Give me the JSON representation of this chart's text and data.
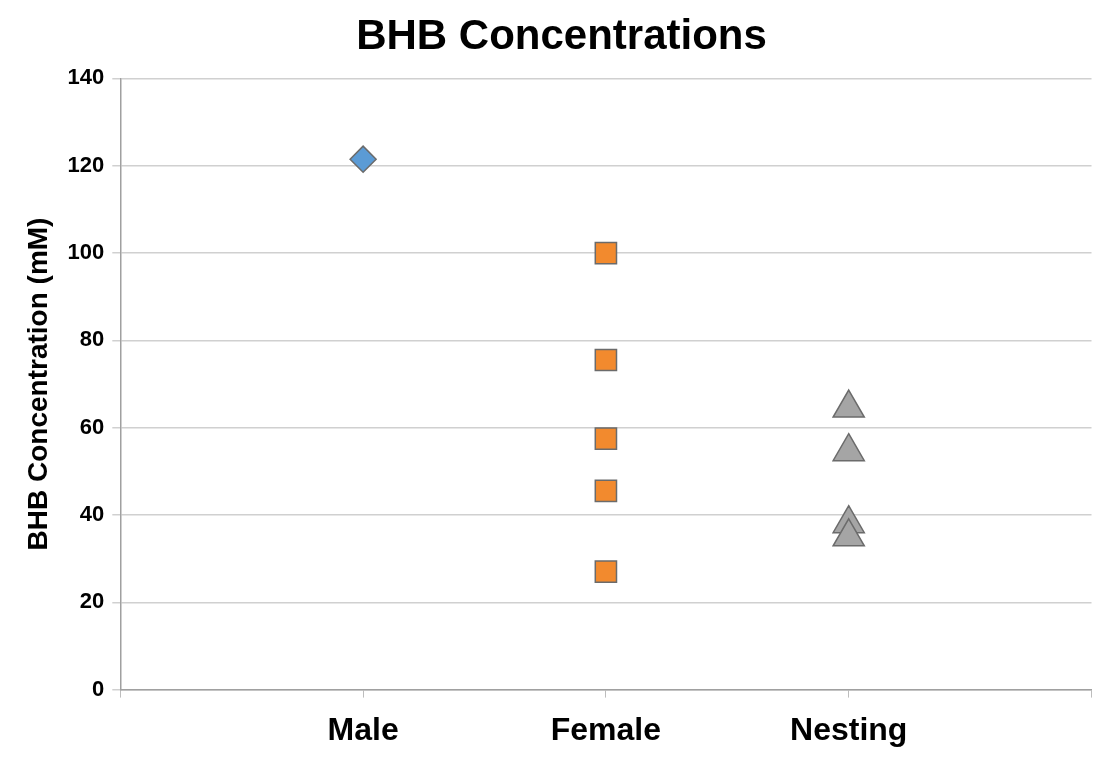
{
  "chart_data": {
    "type": "scatter",
    "title": "BHB Concentrations",
    "ylabel": "BHB Concentration (mM)",
    "categories": [
      "Male",
      "Female",
      "Nesting"
    ],
    "ylim": [
      0,
      140
    ],
    "yticks": [
      0,
      20,
      40,
      60,
      80,
      100,
      120,
      140
    ],
    "grid": "y",
    "legend": false,
    "series": [
      {
        "color": "#5b9bd5",
        "marker": "diamond",
        "x": [
          "Male"
        ],
        "values": [
          121.5
        ]
      },
      {
        "color": "#f28a2e",
        "marker": "square",
        "x": [
          "Female",
          "Female",
          "Female",
          "Female",
          "Female"
        ],
        "values": [
          100,
          75.5,
          57.5,
          45.5,
          27
        ]
      },
      {
        "color": "#a5a5a5",
        "marker": "triangle",
        "x": [
          "Nesting",
          "Nesting",
          "Nesting",
          "Nesting"
        ],
        "values": [
          64.5,
          54.5,
          38,
          35
        ]
      }
    ]
  }
}
